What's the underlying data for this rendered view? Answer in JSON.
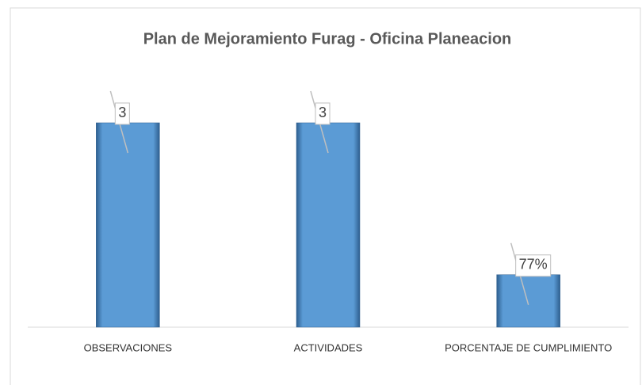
{
  "chart_data": {
    "type": "bar",
    "title": "Plan de Mejoramiento Furag - Oficina Planeacion",
    "categories": [
      "OBSERVACIONES",
      "ACTIVIDADES",
      "PORCENTAJE DE CUMPLIMIENTO"
    ],
    "values": [
      3,
      3,
      0.77
    ],
    "value_labels": [
      "3",
      "3",
      "77%"
    ],
    "color": "#5b9bd5",
    "ylim": [
      0,
      3.5
    ]
  }
}
